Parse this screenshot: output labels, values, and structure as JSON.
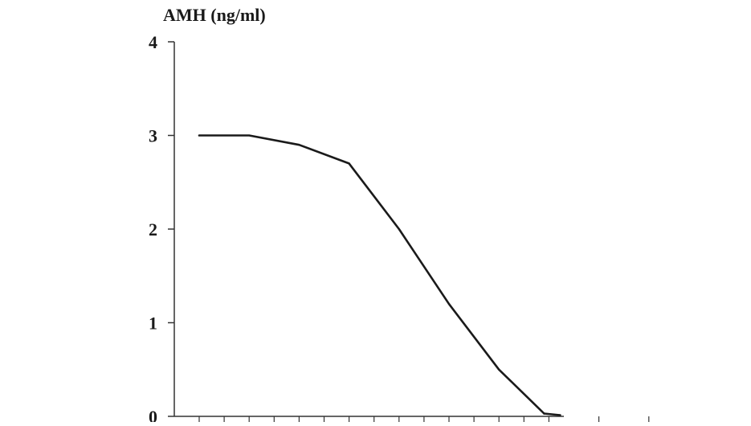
{
  "chart_data": {
    "type": "line",
    "title": "",
    "xlabel": "",
    "ylabel": "AMH (ng/ml)",
    "ylim": [
      0,
      4
    ],
    "yticks": [
      "0",
      "1",
      "2",
      "3",
      "4"
    ],
    "x": [
      1,
      2,
      3,
      4,
      5,
      6,
      7,
      8,
      9,
      10
    ],
    "xlim": [
      0,
      11
    ],
    "series": [
      {
        "values": [
          3.0,
          3.0,
          2.9,
          2.7,
          2.0,
          1.2,
          0.5,
          0.03
        ],
        "x": [
          1,
          2,
          3,
          4,
          5,
          6,
          7,
          8
        ]
      }
    ],
    "line_color": "#1a1a1a",
    "grid": false,
    "legend": "none"
  }
}
